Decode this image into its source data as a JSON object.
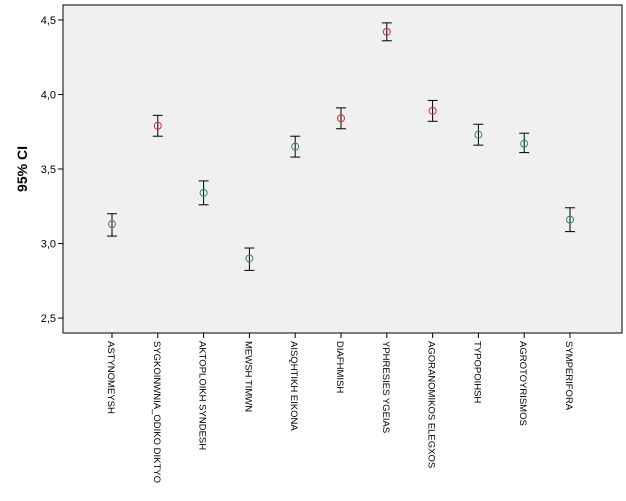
{
  "chart_data": {
    "type": "scatter",
    "subtype": "error-bar",
    "ylabel": "95% CI",
    "xlabel": "",
    "ylim": [
      2.4,
      4.6
    ],
    "yticks": [
      "2,5",
      "3,0",
      "3,5",
      "4,0",
      "4,5"
    ],
    "ytick_values": [
      2.5,
      3.0,
      3.5,
      4.0,
      4.5
    ],
    "grid": false,
    "categories": [
      "ASTYNOMEYSH",
      "SYGKOINWNIA_ODIKO DIKTYO",
      "AKTOPLOIKH SYNDESH",
      "MEWSH TIMWN",
      "AISQHTIKH EIKONA",
      "DIAFHMISH",
      "YPHRESIES YGEIAS",
      "AGORANOMIKOS ELEGXOS",
      "TYPOPOIHSH",
      "AGROTOYRISMOS",
      "SYMPERIFORA"
    ],
    "means": [
      3.13,
      3.79,
      3.34,
      2.9,
      3.65,
      3.84,
      4.42,
      3.89,
      3.73,
      3.67,
      3.16
    ],
    "lower": [
      3.05,
      3.72,
      3.26,
      2.82,
      3.58,
      3.77,
      4.36,
      3.82,
      3.66,
      3.61,
      3.08
    ],
    "upper": [
      3.2,
      3.86,
      3.42,
      2.97,
      3.72,
      3.91,
      4.48,
      3.96,
      3.8,
      3.74,
      3.24
    ],
    "marker_colors": [
      "#2e8b57",
      "#cc3333",
      "#2e8b57",
      "#2e8b57",
      "#2e8b57",
      "#cc3333",
      "#cc3333",
      "#cc3333",
      "#2e8b57",
      "#2e8b57",
      "#2e8b57"
    ],
    "colors": {
      "plot_background": "#f0f0f0",
      "axis": "#000000",
      "errorbar": "#000000"
    }
  }
}
